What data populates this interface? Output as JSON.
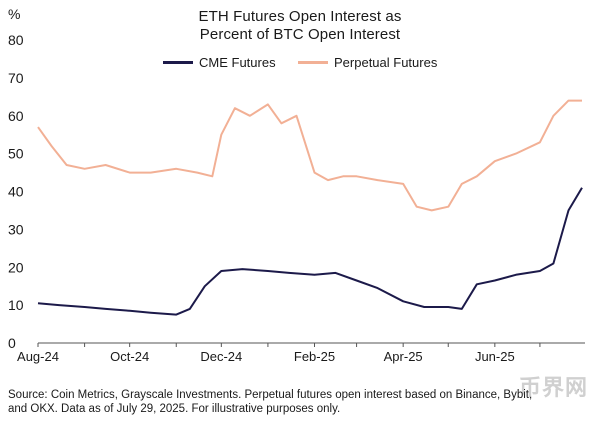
{
  "chart_data": {
    "type": "line",
    "title_line1": "ETH Futures Open Interest as",
    "title_line2": "Percent of BTC Open Interest",
    "ylabel": "%",
    "xlabel": "",
    "ylim": [
      0,
      80
    ],
    "yticks": [
      "0",
      "10",
      "20",
      "30",
      "40",
      "50",
      "60",
      "70",
      "80"
    ],
    "xticks": [
      "Aug-24",
      "Oct-24",
      "Dec-24",
      "Feb-25",
      "Apr-25",
      "Jun-25"
    ],
    "xlim": [
      "2024-08-01",
      "2025-07-31"
    ],
    "grid": false,
    "legend_position": "top-center",
    "series": [
      {
        "name": "CME Futures",
        "color": "#1c1a4a",
        "x": [
          "2024-08-01",
          "2024-08-15",
          "2024-09-01",
          "2024-09-15",
          "2024-10-01",
          "2024-10-15",
          "2024-11-01",
          "2024-11-10",
          "2024-11-20",
          "2024-12-01",
          "2024-12-15",
          "2025-01-01",
          "2025-01-15",
          "2025-02-01",
          "2025-02-15",
          "2025-03-01",
          "2025-03-15",
          "2025-04-01",
          "2025-04-15",
          "2025-05-01",
          "2025-05-10",
          "2025-05-20",
          "2025-06-01",
          "2025-06-15",
          "2025-07-01",
          "2025-07-10",
          "2025-07-20",
          "2025-07-29"
        ],
        "values": [
          10.5,
          10,
          9.5,
          9,
          8.5,
          8,
          7.5,
          9,
          15,
          19,
          19.5,
          19,
          18.5,
          18,
          18.5,
          16.5,
          14.5,
          11,
          9.5,
          9.5,
          9,
          15.5,
          16.5,
          18,
          19,
          21,
          35,
          41
        ]
      },
      {
        "name": "Perpetual Futures",
        "color": "#f2b095",
        "x": [
          "2024-08-01",
          "2024-08-10",
          "2024-08-20",
          "2024-09-01",
          "2024-09-15",
          "2024-10-01",
          "2024-10-15",
          "2024-11-01",
          "2024-11-15",
          "2024-11-25",
          "2024-12-01",
          "2024-12-10",
          "2024-12-20",
          "2025-01-01",
          "2025-01-10",
          "2025-01-20",
          "2025-02-01",
          "2025-02-10",
          "2025-02-20",
          "2025-03-01",
          "2025-03-15",
          "2025-04-01",
          "2025-04-10",
          "2025-04-20",
          "2025-05-01",
          "2025-05-10",
          "2025-05-20",
          "2025-06-01",
          "2025-06-15",
          "2025-07-01",
          "2025-07-10",
          "2025-07-20",
          "2025-07-29"
        ],
        "values": [
          57,
          52,
          47,
          46,
          47,
          45,
          45,
          46,
          45,
          44,
          55,
          62,
          60,
          63,
          58,
          60,
          45,
          43,
          44,
          44,
          43,
          42,
          36,
          35,
          36,
          42,
          44,
          48,
          50,
          53,
          60,
          64,
          64
        ]
      }
    ]
  },
  "source_line1": "Source: Coin Metrics, Grayscale Investments. Perpetual futures open interest based on Binance, Bybit,",
  "source_line2": "and OKX. Data as of July 29, 2025. For illustrative purposes only.",
  "watermark": "币界网"
}
